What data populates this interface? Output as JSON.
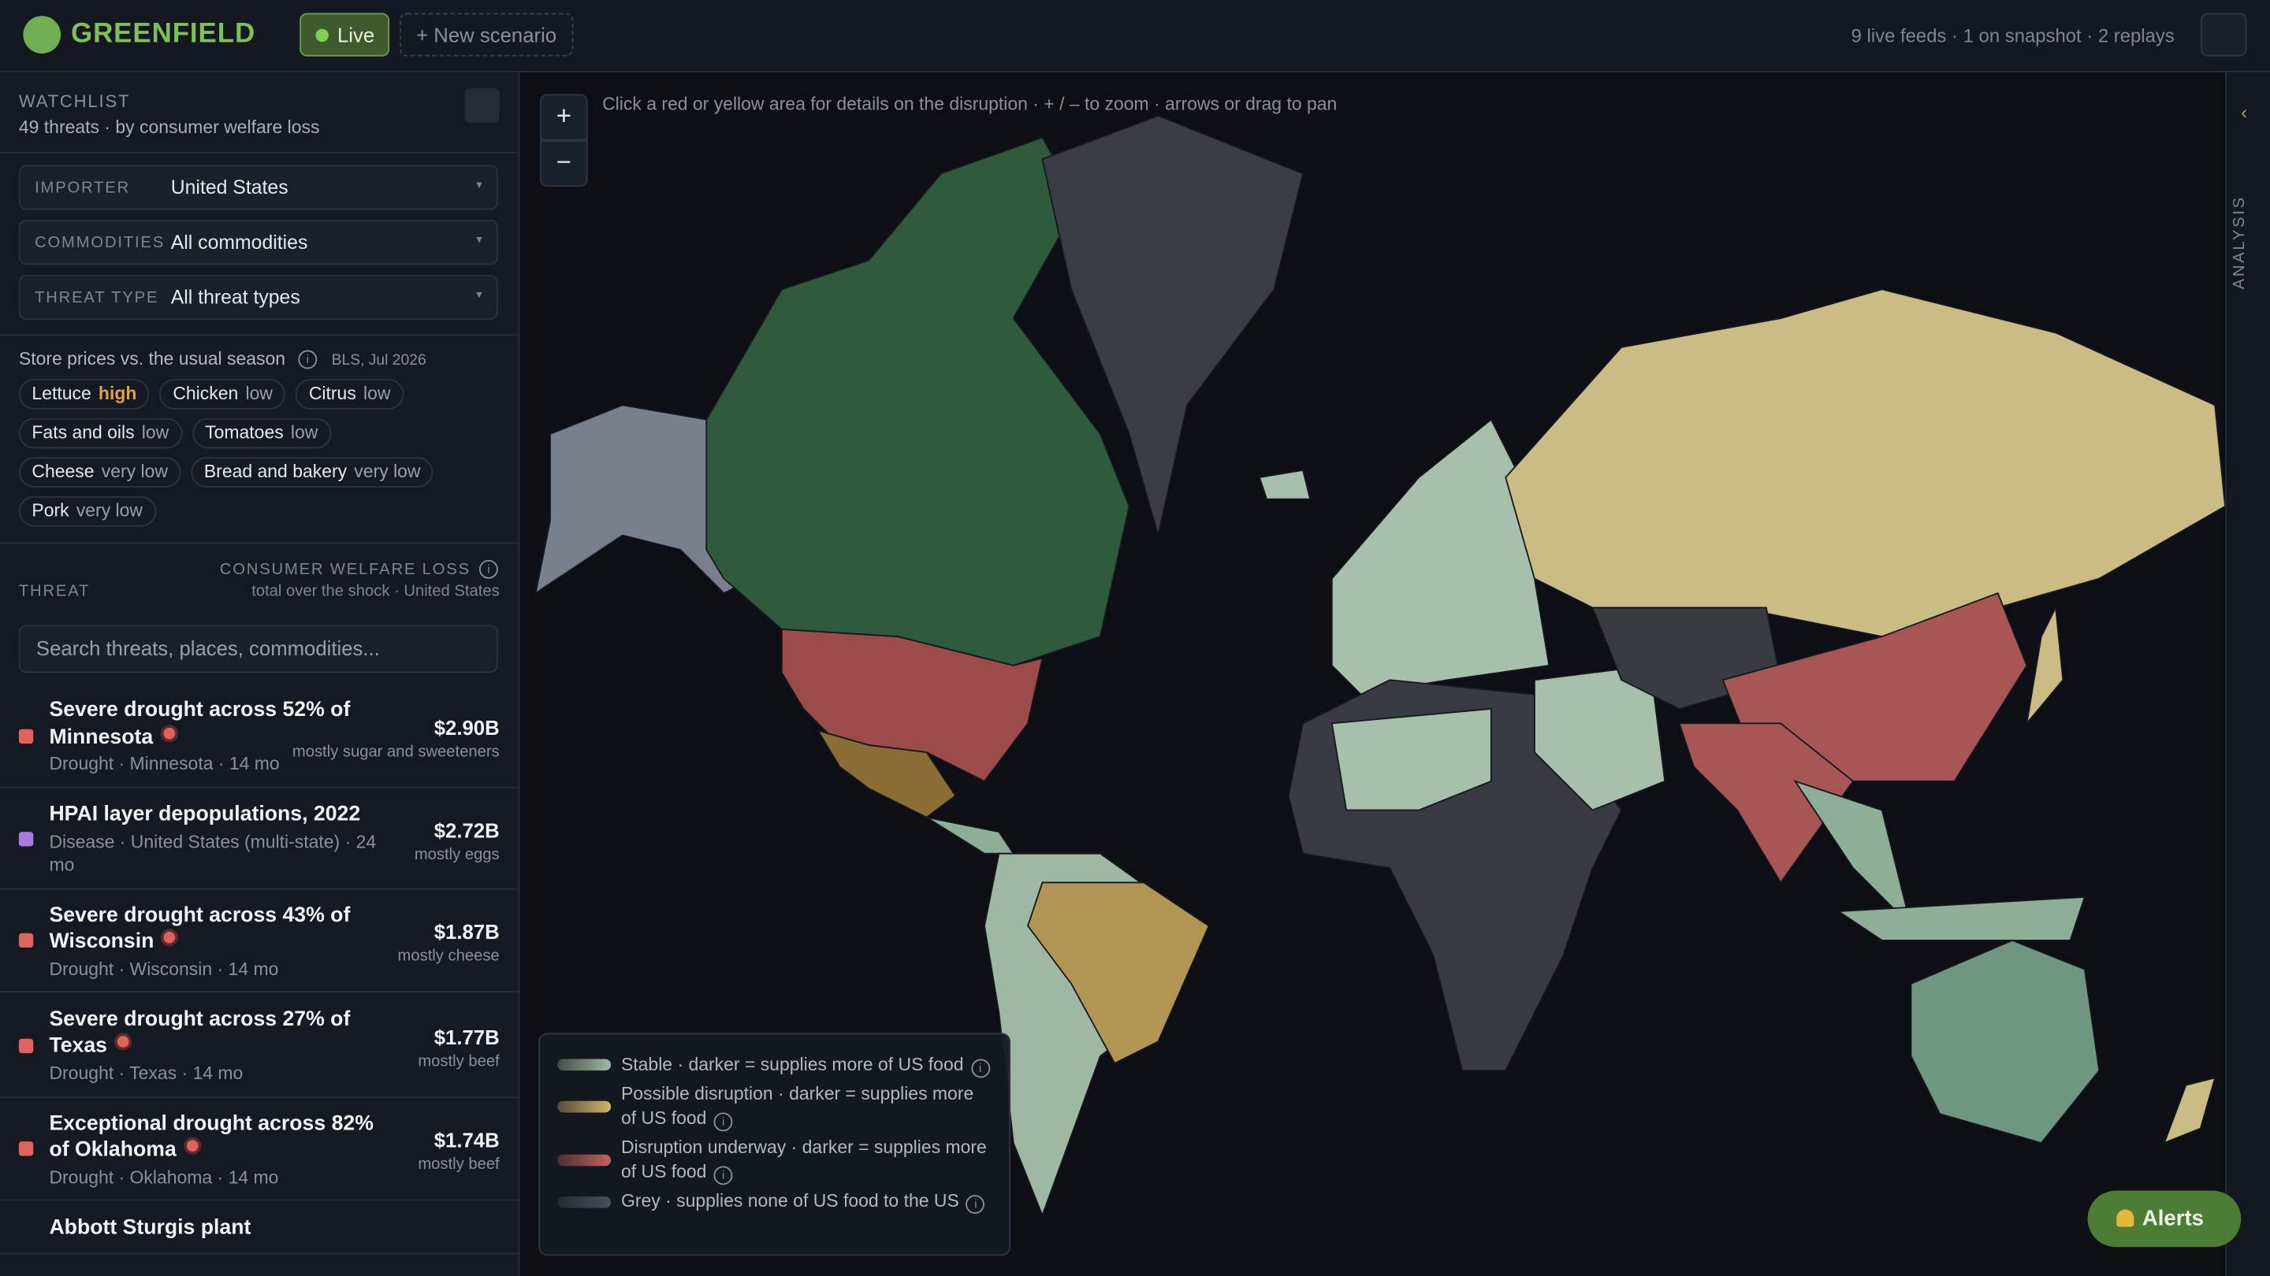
{
  "header": {
    "brand": "GREENFIELD",
    "mode": "Live",
    "new_scenario": "+ New scenario",
    "status": "9 live feeds · 1 on snapshot · 2 replays"
  },
  "sidebar": {
    "title": "WATCHLIST",
    "subtitle": "49 threats · by consumer welfare loss",
    "filters": [
      {
        "label": "IMPORTER",
        "value": "United States"
      },
      {
        "label": "COMMODITIES",
        "value": "All commodities"
      },
      {
        "label": "THREAT TYPE",
        "value": "All threat types"
      }
    ],
    "prices": {
      "title": "Store prices vs. the usual season",
      "source": "BLS, Jul 2026",
      "items": [
        {
          "name": "Lettuce",
          "level": "high",
          "color": "#e3a33b"
        },
        {
          "name": "Chicken",
          "level": "low",
          "color": "#9aa1ab"
        },
        {
          "name": "Citrus",
          "level": "low",
          "color": "#9aa1ab"
        },
        {
          "name": "Fats and oils",
          "level": "low",
          "color": "#9aa1ab"
        },
        {
          "name": "Tomatoes",
          "level": "low",
          "color": "#9aa1ab"
        },
        {
          "name": "Cheese",
          "level": "very low",
          "color": "#9aa1ab"
        },
        {
          "name": "Bread and bakery",
          "level": "very low",
          "color": "#9aa1ab"
        },
        {
          "name": "Pork",
          "level": "very low",
          "color": "#9aa1ab"
        }
      ]
    },
    "list_header": {
      "threat": "THREAT",
      "metric": "CONSUMER WELFARE LOSS",
      "metric_note": "total over the shock · United States"
    },
    "search": "Search threats, places, commodities...",
    "threats": [
      {
        "title": "Severe drought across 52% of Minnesota",
        "meta": "Drought · Minnesota · 14 mo",
        "value": "$2.90B",
        "note": "mostly sugar and sweeteners",
        "color": "#e0625d",
        "live": true
      },
      {
        "title": "HPAI layer depopulations, 2022",
        "meta": "Disease · United States (multi-state) · 24 mo",
        "value": "$2.72B",
        "note": "mostly eggs",
        "color": "#a77be0",
        "live": false
      },
      {
        "title": "Severe drought across 43% of Wisconsin",
        "meta": "Drought · Wisconsin · 14 mo",
        "value": "$1.87B",
        "note": "mostly cheese",
        "color": "#e0625d",
        "live": true
      },
      {
        "title": "Severe drought across 27% of Texas",
        "meta": "Drought · Texas · 14 mo",
        "value": "$1.77B",
        "note": "mostly beef",
        "color": "#e0625d",
        "live": true
      },
      {
        "title": "Exceptional drought across 82% of Oklahoma",
        "meta": "Drought · Oklahoma · 14 mo",
        "value": "$1.74B",
        "note": "mostly beef",
        "color": "#e0625d",
        "live": true
      },
      {
        "title": "Abbott Sturgis plant"
      }
    ]
  },
  "map": {
    "hint": "Click a red or yellow area for details on the disruption · + / – to zoom · arrows or drag to pan",
    "zoom_in": "+",
    "zoom_out": "−",
    "legend": [
      {
        "text": "Stable · darker = supplies more of US food",
        "color": "#9fb8a3"
      },
      {
        "text": "Possible disruption · darker = supplies more of US food",
        "color": "#d4b56d"
      },
      {
        "text": "Disruption underway · darker = supplies more of US food",
        "color": "#c0625f"
      },
      {
        "text": "Grey · supplies none of US food to the US",
        "color": "#4a4e57"
      }
    ]
  },
  "side_panel": {
    "label": "ANALYSIS"
  },
  "alerts": "Alerts"
}
